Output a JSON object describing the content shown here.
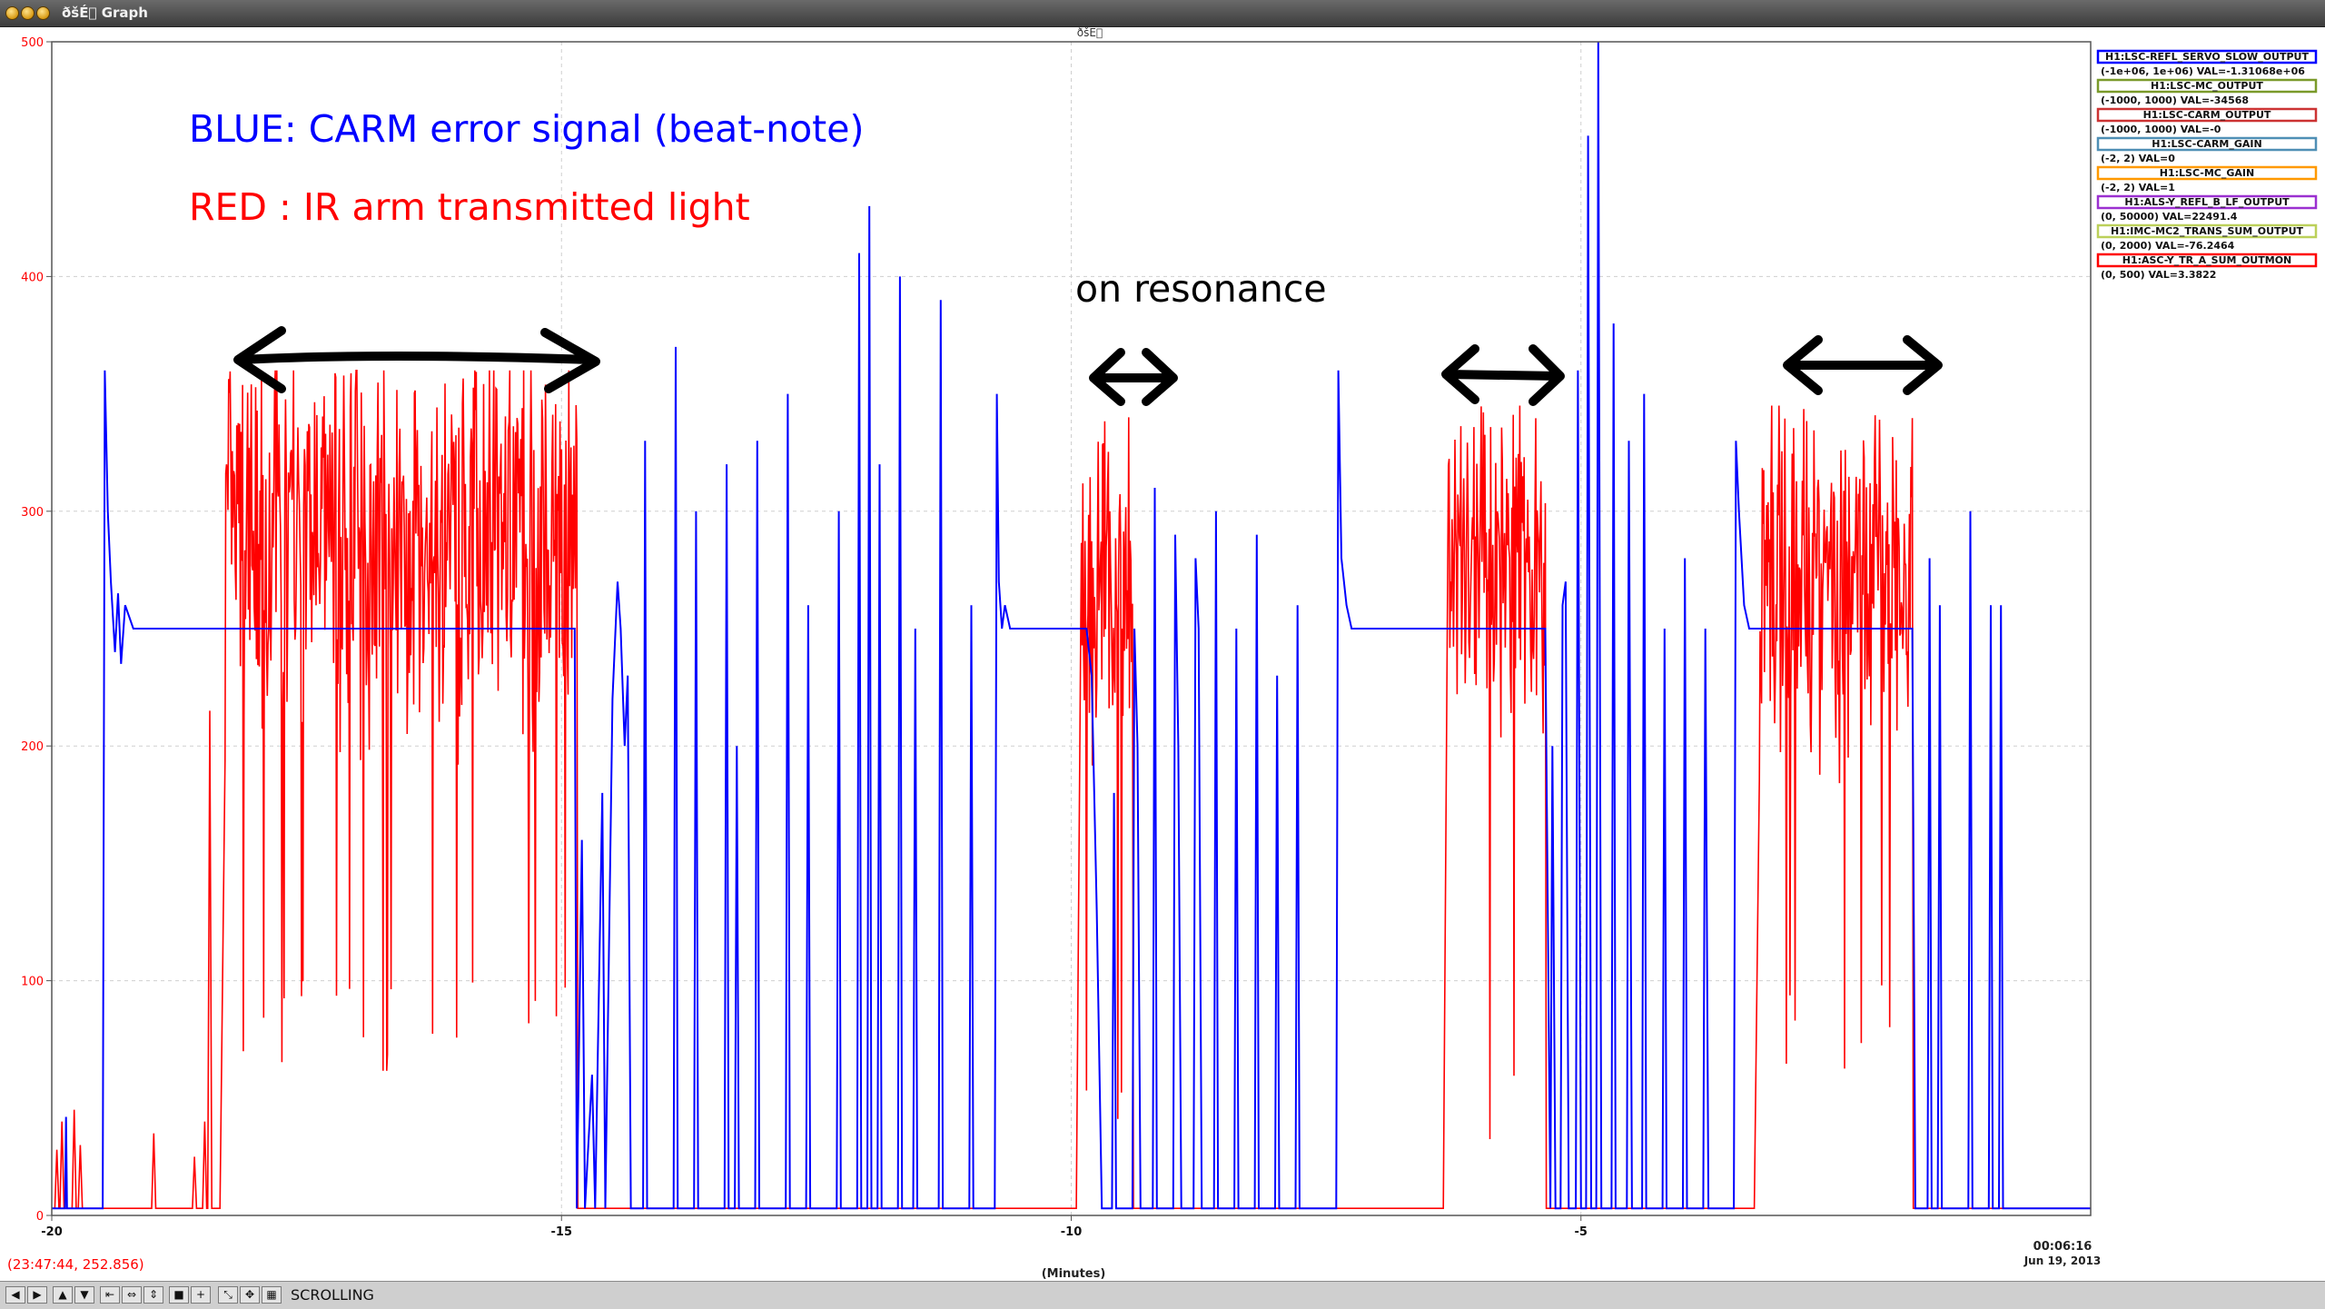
{
  "window": {
    "title": "ðšÉ⃞ Graph",
    "center_label": "ðšÉ⃞"
  },
  "chart_data": {
    "type": "line",
    "xlabel": "(Minutes)",
    "x_ticks": [
      "-20",
      "-15",
      "-10",
      "-5"
    ],
    "y_ticks": [
      "0",
      "100",
      "200",
      "300",
      "400",
      "500"
    ],
    "xlim": [
      -20,
      0
    ],
    "ylim": [
      0,
      500
    ],
    "grid": true,
    "end_time_label": "00:06:16",
    "end_date_label": "Jun 19, 2013",
    "cursor_readout": "(23:47:44, 252.856)",
    "legend_placement": "top-right",
    "legend": [
      {
        "name": "H1:LSC-REFL_SERVO_SLOW_OUTPUT",
        "range": "(-1e+06, 1e+06) VAL=-1.31068e+06",
        "color": "#0000ff"
      },
      {
        "name": "H1:LSC-MC_OUTPUT",
        "range": "(-1000, 1000) VAL=-34568",
        "color": "#7a9a2a"
      },
      {
        "name": "H1:LSC-CARM_OUTPUT",
        "range": "(-1000, 1000) VAL=-0",
        "color": "#cc3333"
      },
      {
        "name": "H1:LSC-CARM_GAIN",
        "range": "(-2, 2) VAL=0",
        "color": "#4f8fb5"
      },
      {
        "name": "H1:LSC-MC_GAIN",
        "range": "(-2, 2) VAL=1",
        "color": "#ff9900"
      },
      {
        "name": "H1:ALS-Y_REFL_B_LF_OUTPUT",
        "range": "(0, 50000) VAL=22491.4",
        "color": "#9b30d0"
      },
      {
        "name": "H1:IMC-MC2_TRANS_SUM_OUTPUT",
        "range": "(0, 2000) VAL=-76.2464",
        "color": "#bcd05a"
      },
      {
        "name": "H1:ASC-Y_TR_A_SUM_OUTMON",
        "range": "(0, 500) VAL=3.3822",
        "color": "#ff0000"
      }
    ],
    "annotations": {
      "blue_note": "BLUE: CARM error signal (beat-note)",
      "red_note": "RED : IR arm transmitted light",
      "resonance_note": "on resonance"
    },
    "series": [
      {
        "color": "#0000ff",
        "baseline": 250,
        "points": [
          [
            -20,
            3
          ],
          [
            -19.87,
            3
          ],
          [
            -19.86,
            42
          ],
          [
            -19.85,
            3
          ],
          [
            -19.5,
            3
          ],
          [
            -19.48,
            360
          ],
          [
            -19.45,
            300
          ],
          [
            -19.42,
            270
          ],
          [
            -19.38,
            240
          ],
          [
            -19.35,
            265
          ],
          [
            -19.32,
            235
          ],
          [
            -19.28,
            260
          ],
          [
            -19.2,
            250
          ],
          [
            -14.87,
            250
          ],
          [
            -14.85,
            3
          ],
          [
            -14.8,
            160
          ],
          [
            -14.77,
            3
          ],
          [
            -14.7,
            60
          ],
          [
            -14.67,
            3
          ],
          [
            -14.6,
            180
          ],
          [
            -14.57,
            3
          ],
          [
            -14.5,
            220
          ],
          [
            -14.45,
            270
          ],
          [
            -14.42,
            250
          ],
          [
            -14.38,
            200
          ],
          [
            -14.35,
            230
          ],
          [
            -14.32,
            3
          ],
          [
            -14.2,
            3
          ],
          [
            -14.18,
            330
          ],
          [
            -14.16,
            3
          ],
          [
            -13.9,
            3
          ],
          [
            -13.88,
            370
          ],
          [
            -13.86,
            3
          ],
          [
            -13.7,
            3
          ],
          [
            -13.68,
            300
          ],
          [
            -13.66,
            3
          ],
          [
            -13.4,
            3
          ],
          [
            -13.38,
            320
          ],
          [
            -13.36,
            3
          ],
          [
            -13.3,
            3
          ],
          [
            -13.28,
            200
          ],
          [
            -13.26,
            3
          ],
          [
            -13.1,
            3
          ],
          [
            -13.08,
            330
          ],
          [
            -13.06,
            3
          ],
          [
            -12.8,
            3
          ],
          [
            -12.78,
            350
          ],
          [
            -12.76,
            3
          ],
          [
            -12.6,
            3
          ],
          [
            -12.58,
            260
          ],
          [
            -12.56,
            3
          ],
          [
            -12.3,
            3
          ],
          [
            -12.28,
            300
          ],
          [
            -12.26,
            3
          ],
          [
            -12.1,
            3
          ],
          [
            -12.08,
            410
          ],
          [
            -12.06,
            3
          ],
          [
            -12.0,
            3
          ],
          [
            -11.98,
            430
          ],
          [
            -11.96,
            3
          ],
          [
            -11.9,
            3
          ],
          [
            -11.88,
            320
          ],
          [
            -11.86,
            3
          ],
          [
            -11.7,
            3
          ],
          [
            -11.68,
            400
          ],
          [
            -11.66,
            3
          ],
          [
            -11.55,
            3
          ],
          [
            -11.53,
            250
          ],
          [
            -11.51,
            3
          ],
          [
            -11.3,
            3
          ],
          [
            -11.28,
            390
          ],
          [
            -11.26,
            3
          ],
          [
            -11.0,
            3
          ],
          [
            -10.98,
            260
          ],
          [
            -10.96,
            3
          ],
          [
            -10.75,
            3
          ],
          [
            -10.73,
            350
          ],
          [
            -10.71,
            270
          ],
          [
            -10.68,
            250
          ],
          [
            -10.65,
            260
          ],
          [
            -10.6,
            250
          ],
          [
            -9.85,
            250
          ],
          [
            -9.8,
            230
          ],
          [
            -9.75,
            130
          ],
          [
            -9.7,
            3
          ],
          [
            -9.6,
            3
          ],
          [
            -9.58,
            180
          ],
          [
            -9.56,
            3
          ],
          [
            -9.4,
            3
          ],
          [
            -9.38,
            250
          ],
          [
            -9.35,
            200
          ],
          [
            -9.32,
            3
          ],
          [
            -9.2,
            3
          ],
          [
            -9.18,
            310
          ],
          [
            -9.16,
            3
          ],
          [
            -9.0,
            3
          ],
          [
            -8.98,
            290
          ],
          [
            -8.95,
            200
          ],
          [
            -8.92,
            3
          ],
          [
            -8.8,
            3
          ],
          [
            -8.78,
            280
          ],
          [
            -8.75,
            250
          ],
          [
            -8.72,
            3
          ],
          [
            -8.6,
            3
          ],
          [
            -8.58,
            300
          ],
          [
            -8.56,
            3
          ],
          [
            -8.4,
            3
          ],
          [
            -8.38,
            250
          ],
          [
            -8.36,
            3
          ],
          [
            -8.2,
            3
          ],
          [
            -8.18,
            290
          ],
          [
            -8.16,
            3
          ],
          [
            -8.0,
            3
          ],
          [
            -7.98,
            230
          ],
          [
            -7.96,
            3
          ],
          [
            -7.8,
            3
          ],
          [
            -7.78,
            260
          ],
          [
            -7.76,
            3
          ],
          [
            -7.4,
            3
          ],
          [
            -7.38,
            360
          ],
          [
            -7.35,
            280
          ],
          [
            -7.3,
            260
          ],
          [
            -7.25,
            250
          ],
          [
            -7.2,
            250
          ],
          [
            -5.35,
            250
          ],
          [
            -5.3,
            3
          ],
          [
            -5.28,
            200
          ],
          [
            -5.25,
            3
          ],
          [
            -5.2,
            3
          ],
          [
            -5.18,
            260
          ],
          [
            -5.15,
            270
          ],
          [
            -5.12,
            3
          ],
          [
            -5.05,
            3
          ],
          [
            -5.03,
            360
          ],
          [
            -5.0,
            3
          ],
          [
            -4.95,
            3
          ],
          [
            -4.93,
            460
          ],
          [
            -4.9,
            3
          ],
          [
            -4.85,
            3
          ],
          [
            -4.83,
            500
          ],
          [
            -4.8,
            3
          ],
          [
            -4.7,
            3
          ],
          [
            -4.68,
            380
          ],
          [
            -4.66,
            3
          ],
          [
            -4.55,
            3
          ],
          [
            -4.53,
            330
          ],
          [
            -4.5,
            3
          ],
          [
            -4.4,
            3
          ],
          [
            -4.38,
            350
          ],
          [
            -4.36,
            3
          ],
          [
            -4.2,
            3
          ],
          [
            -4.18,
            250
          ],
          [
            -4.16,
            3
          ],
          [
            -4.0,
            3
          ],
          [
            -3.98,
            280
          ],
          [
            -3.96,
            3
          ],
          [
            -3.8,
            3
          ],
          [
            -3.78,
            250
          ],
          [
            -3.75,
            3
          ],
          [
            -3.5,
            3
          ],
          [
            -3.48,
            330
          ],
          [
            -3.45,
            300
          ],
          [
            -3.4,
            260
          ],
          [
            -3.35,
            250
          ],
          [
            -3.3,
            250
          ],
          [
            -1.75,
            250
          ],
          [
            -1.72,
            3
          ],
          [
            -1.6,
            3
          ],
          [
            -1.58,
            280
          ],
          [
            -1.56,
            3
          ],
          [
            -1.5,
            3
          ],
          [
            -1.48,
            260
          ],
          [
            -1.46,
            3
          ],
          [
            -1.2,
            3
          ],
          [
            -1.18,
            300
          ],
          [
            -1.16,
            3
          ],
          [
            -1.0,
            3
          ],
          [
            -0.98,
            260
          ],
          [
            -0.96,
            3
          ],
          [
            -0.9,
            3
          ],
          [
            -0.88,
            260
          ],
          [
            -0.86,
            3
          ],
          [
            0,
            3
          ]
        ]
      },
      {
        "color": "#ff0000",
        "bursts": [
          {
            "x0": -18.3,
            "x1": -14.85,
            "avg": 285,
            "amp": 60,
            "max": 360,
            "min": 60
          },
          {
            "x0": -9.9,
            "x1": -9.4,
            "avg": 270,
            "amp": 55,
            "max": 340,
            "min": 30
          },
          {
            "x0": -6.3,
            "x1": -5.35,
            "avg": 270,
            "amp": 55,
            "max": 345,
            "min": 30
          },
          {
            "x0": -3.25,
            "x1": -1.75,
            "avg": 270,
            "amp": 55,
            "max": 345,
            "min": 60
          }
        ],
        "spikes": [
          [
            -19.95,
            28
          ],
          [
            -19.9,
            40
          ],
          [
            -19.78,
            45
          ],
          [
            -19.72,
            30
          ],
          [
            -19.0,
            35
          ],
          [
            -18.6,
            25
          ],
          [
            -18.5,
            40
          ],
          [
            -18.45,
            215
          ]
        ],
        "floor": 3
      }
    ]
  }
}
